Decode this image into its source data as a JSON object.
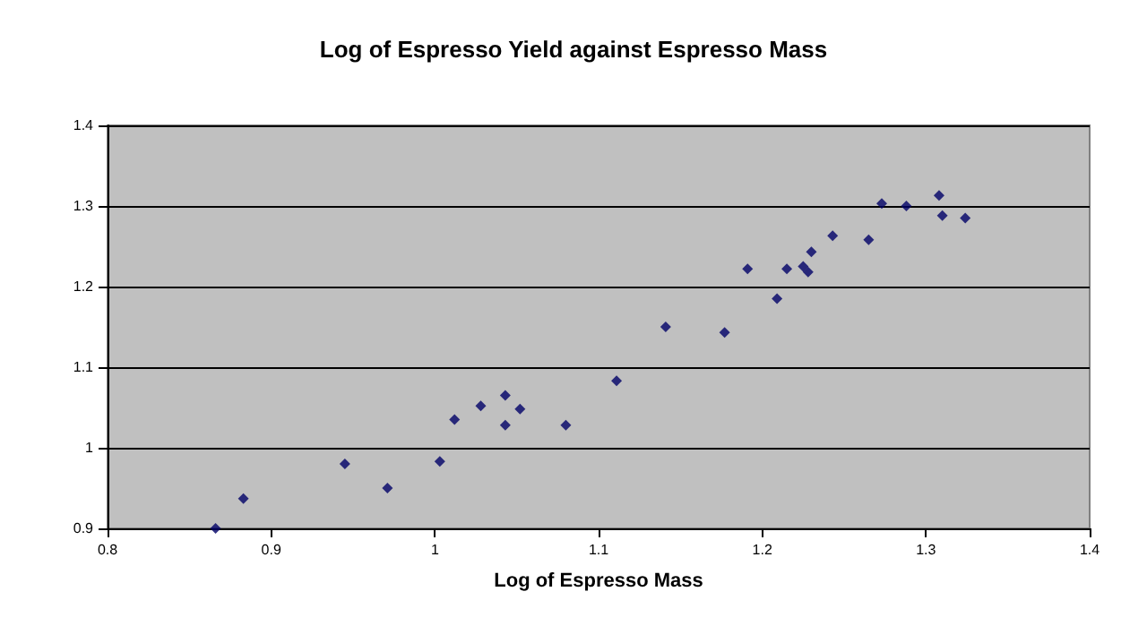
{
  "chart_data": {
    "type": "scatter",
    "title": "Log of Espresso Yield against Espresso Mass",
    "xlabel": "Log of Espresso Mass",
    "x": [
      0.866,
      0.883,
      0.945,
      0.971,
      1.003,
      1.012,
      1.028,
      1.043,
      1.043,
      1.052,
      1.08,
      1.111,
      1.141,
      1.177,
      1.209,
      1.191,
      1.215,
      1.225,
      1.228,
      1.23,
      1.243,
      1.265,
      1.273,
      1.288,
      1.308,
      1.31,
      1.324
    ],
    "values": [
      0.9,
      0.937,
      0.98,
      0.95,
      0.983,
      1.035,
      1.052,
      1.028,
      1.065,
      1.048,
      1.028,
      1.083,
      1.15,
      1.143,
      1.185,
      1.222,
      1.222,
      1.225,
      1.218,
      1.243,
      1.263,
      1.258,
      1.303,
      1.3,
      1.313,
      1.288,
      1.285
    ],
    "color": "#000066",
    "marker": "diamond",
    "grid": "y",
    "xlim": [
      0.8,
      1.4
    ],
    "xticks": [
      0.8,
      0.9,
      1,
      1.1,
      1.2,
      1.3,
      1.4
    ],
    "ylim": [
      0.9,
      1.4
    ],
    "yticks": [
      0.9,
      1,
      1.1,
      1.2,
      1.3,
      1.4
    ]
  }
}
